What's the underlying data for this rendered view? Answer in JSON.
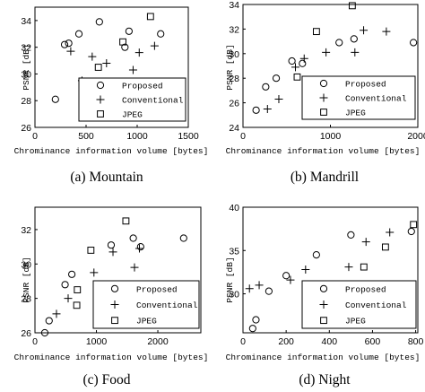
{
  "chart_data": [
    {
      "type": "scatter",
      "caption": "(a) Mountain",
      "xlabel": "Chrominance information volume [bytes]",
      "ylabel": "PSNR [dB]",
      "xlim": [
        0,
        1500
      ],
      "ylim": [
        26,
        35
      ],
      "xticks": [
        0,
        500,
        1000,
        1500
      ],
      "yticks": [
        26,
        28,
        30,
        32,
        34
      ],
      "legend_position": "bottom-right",
      "series": [
        {
          "name": "Proposed",
          "marker": "circle",
          "points": [
            [
              200,
              28.1
            ],
            [
              290,
              32.2
            ],
            [
              330,
              32.3
            ],
            [
              430,
              33.0
            ],
            [
              630,
              33.9
            ],
            [
              880,
              32.0
            ],
            [
              920,
              33.2
            ],
            [
              1230,
              33.0
            ]
          ]
        },
        {
          "name": "Conventional",
          "marker": "plus",
          "points": [
            [
              350,
              31.7
            ],
            [
              460,
              29.5
            ],
            [
              560,
              31.3
            ],
            [
              700,
              30.8
            ],
            [
              960,
              30.3
            ],
            [
              1020,
              31.6
            ],
            [
              1170,
              32.1
            ]
          ]
        },
        {
          "name": "JPEG",
          "marker": "square",
          "points": [
            [
              620,
              30.5
            ],
            [
              860,
              32.4
            ],
            [
              1130,
              34.3
            ]
          ]
        }
      ]
    },
    {
      "type": "scatter",
      "caption": "(b) Mandrill",
      "xlabel": "Chrominance information volume [bytes]",
      "ylabel": "PSNR [dB]",
      "xlim": [
        0,
        2000
      ],
      "ylim": [
        24,
        34
      ],
      "xticks": [
        0,
        1000,
        2000
      ],
      "yticks": [
        24,
        26,
        28,
        30,
        32,
        34
      ],
      "legend_position": "bottom-right",
      "series": [
        {
          "name": "Proposed",
          "marker": "circle",
          "points": [
            [
              150,
              25.4
            ],
            [
              260,
              27.3
            ],
            [
              380,
              28.0
            ],
            [
              560,
              29.4
            ],
            [
              680,
              29.2
            ],
            [
              1100,
              30.9
            ],
            [
              1270,
              31.2
            ],
            [
              1950,
              30.9
            ]
          ]
        },
        {
          "name": "Conventional",
          "marker": "plus",
          "points": [
            [
              280,
              25.5
            ],
            [
              410,
              26.3
            ],
            [
              600,
              28.9
            ],
            [
              700,
              29.6
            ],
            [
              950,
              30.1
            ],
            [
              1280,
              30.1
            ],
            [
              1380,
              31.9
            ],
            [
              1640,
              31.8
            ]
          ]
        },
        {
          "name": "JPEG",
          "marker": "square",
          "points": [
            [
              620,
              28.1
            ],
            [
              840,
              31.8
            ],
            [
              1250,
              33.9
            ]
          ]
        }
      ]
    },
    {
      "type": "scatter",
      "caption": "(c) Food",
      "xlabel": "Chrominance information volume [bytes]",
      "ylabel": "PSNR [dB]",
      "xlim": [
        0,
        2700
      ],
      "ylim": [
        26,
        33.3
      ],
      "xticks": [
        0,
        1000,
        2000
      ],
      "yticks": [
        26,
        28,
        30,
        32
      ],
      "legend_position": "bottom-right",
      "series": [
        {
          "name": "Proposed",
          "marker": "circle",
          "points": [
            [
              160,
              26.0
            ],
            [
              230,
              26.7
            ],
            [
              490,
              28.8
            ],
            [
              600,
              29.4
            ],
            [
              1240,
              31.1
            ],
            [
              1600,
              31.5
            ],
            [
              1720,
              31.0
            ],
            [
              2420,
              31.5
            ]
          ]
        },
        {
          "name": "Conventional",
          "marker": "plus",
          "points": [
            [
              350,
              27.1
            ],
            [
              540,
              28.0
            ],
            [
              960,
              29.5
            ],
            [
              1270,
              30.7
            ],
            [
              1620,
              29.8
            ],
            [
              1700,
              30.9
            ]
          ]
        },
        {
          "name": "JPEG",
          "marker": "square",
          "points": [
            [
              680,
              27.6
            ],
            [
              690,
              28.5
            ],
            [
              910,
              30.8
            ],
            [
              1480,
              32.5
            ]
          ]
        }
      ]
    },
    {
      "type": "scatter",
      "caption": "(d) Night",
      "xlabel": "Chrominance information volume [bytes]",
      "ylabel": "PSNR [dB]",
      "xlim": [
        0,
        810
      ],
      "ylim": [
        25.5,
        40
      ],
      "xticks": [
        0,
        200,
        400,
        600,
        800
      ],
      "yticks": [
        30,
        35,
        40
      ],
      "legend_position": "bottom-right",
      "series": [
        {
          "name": "Proposed",
          "marker": "circle",
          "points": [
            [
              45,
              26.0
            ],
            [
              60,
              27.0
            ],
            [
              120,
              30.3
            ],
            [
              200,
              32.1
            ],
            [
              340,
              34.5
            ],
            [
              500,
              36.8
            ],
            [
              780,
              37.2
            ]
          ]
        },
        {
          "name": "Conventional",
          "marker": "plus",
          "points": [
            [
              30,
              30.6
            ],
            [
              75,
              31.0
            ],
            [
              220,
              31.6
            ],
            [
              290,
              32.8
            ],
            [
              490,
              33.1
            ],
            [
              570,
              36.0
            ],
            [
              680,
              37.1
            ]
          ]
        },
        {
          "name": "JPEG",
          "marker": "square",
          "points": [
            [
              560,
              33.1
            ],
            [
              660,
              35.4
            ],
            [
              790,
              38.0
            ]
          ]
        }
      ]
    }
  ]
}
